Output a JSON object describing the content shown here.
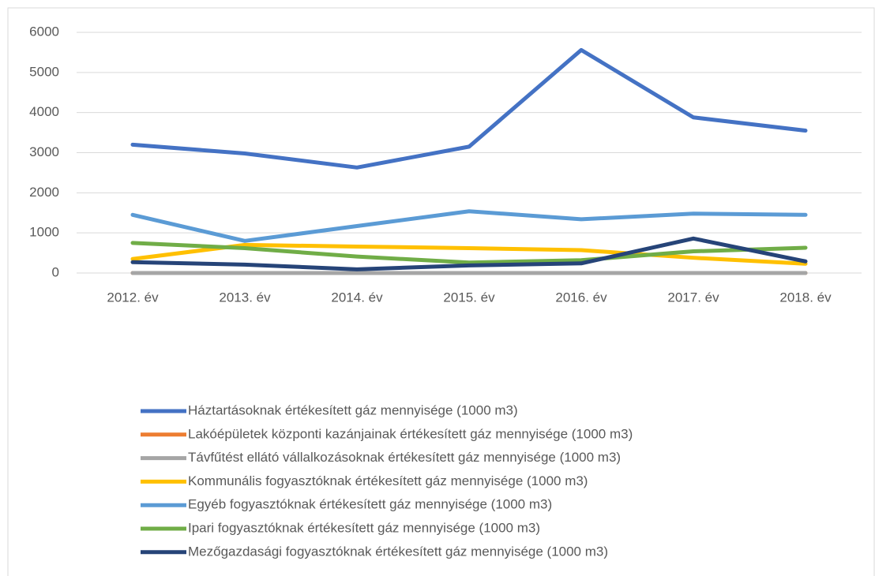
{
  "chart_data": {
    "type": "line",
    "categories": [
      "2012. év",
      "2013. év",
      "2014. év",
      "2015. év",
      "2016. év",
      "2017. év",
      "2018. év"
    ],
    "series": [
      {
        "name": "Háztartásoknak értékesített gáz mennyisége (1000 m3)",
        "color": "#4472c4",
        "values": [
          3200,
          2980,
          2630,
          3150,
          5560,
          3880,
          3550
        ]
      },
      {
        "name": "Lakóépületek központi kazánjainak értékesített gáz mennyisége (1000 m3)",
        "color": "#ed7d31",
        "values": [
          0,
          0,
          0,
          0,
          0,
          0,
          0
        ]
      },
      {
        "name": "Távfűtést ellátó vállalkozásoknak értékesített gáz mennyisége (1000 m3)",
        "color": "#a5a5a5",
        "values": [
          0,
          0,
          0,
          0,
          0,
          0,
          0
        ]
      },
      {
        "name": "Kommunális fogyasztóknak értékesített gáz mennyisége (1000 m3)",
        "color": "#ffc000",
        "values": [
          350,
          700,
          660,
          620,
          570,
          380,
          230
        ]
      },
      {
        "name": "Egyéb fogyasztóknak értékesített gáz mennyisége (1000 m3)",
        "color": "#5b9bd5",
        "values": [
          1450,
          800,
          1170,
          1540,
          1340,
          1480,
          1450
        ]
      },
      {
        "name": "Ipari fogyasztóknak értékesített gáz mennyisége (1000 m3)",
        "color": "#70ad47",
        "values": [
          750,
          620,
          410,
          260,
          320,
          540,
          630
        ]
      },
      {
        "name": "Mezőgazdasági fogyasztóknak értékesített gáz mennyisége (1000 m3)",
        "color": "#264478",
        "values": [
          270,
          210,
          90,
          190,
          240,
          860,
          290
        ]
      }
    ],
    "ylim": [
      0,
      6000
    ],
    "yticks": [
      0,
      1000,
      2000,
      3000,
      4000,
      5000,
      6000
    ],
    "grid": true,
    "legend": "bottom"
  }
}
